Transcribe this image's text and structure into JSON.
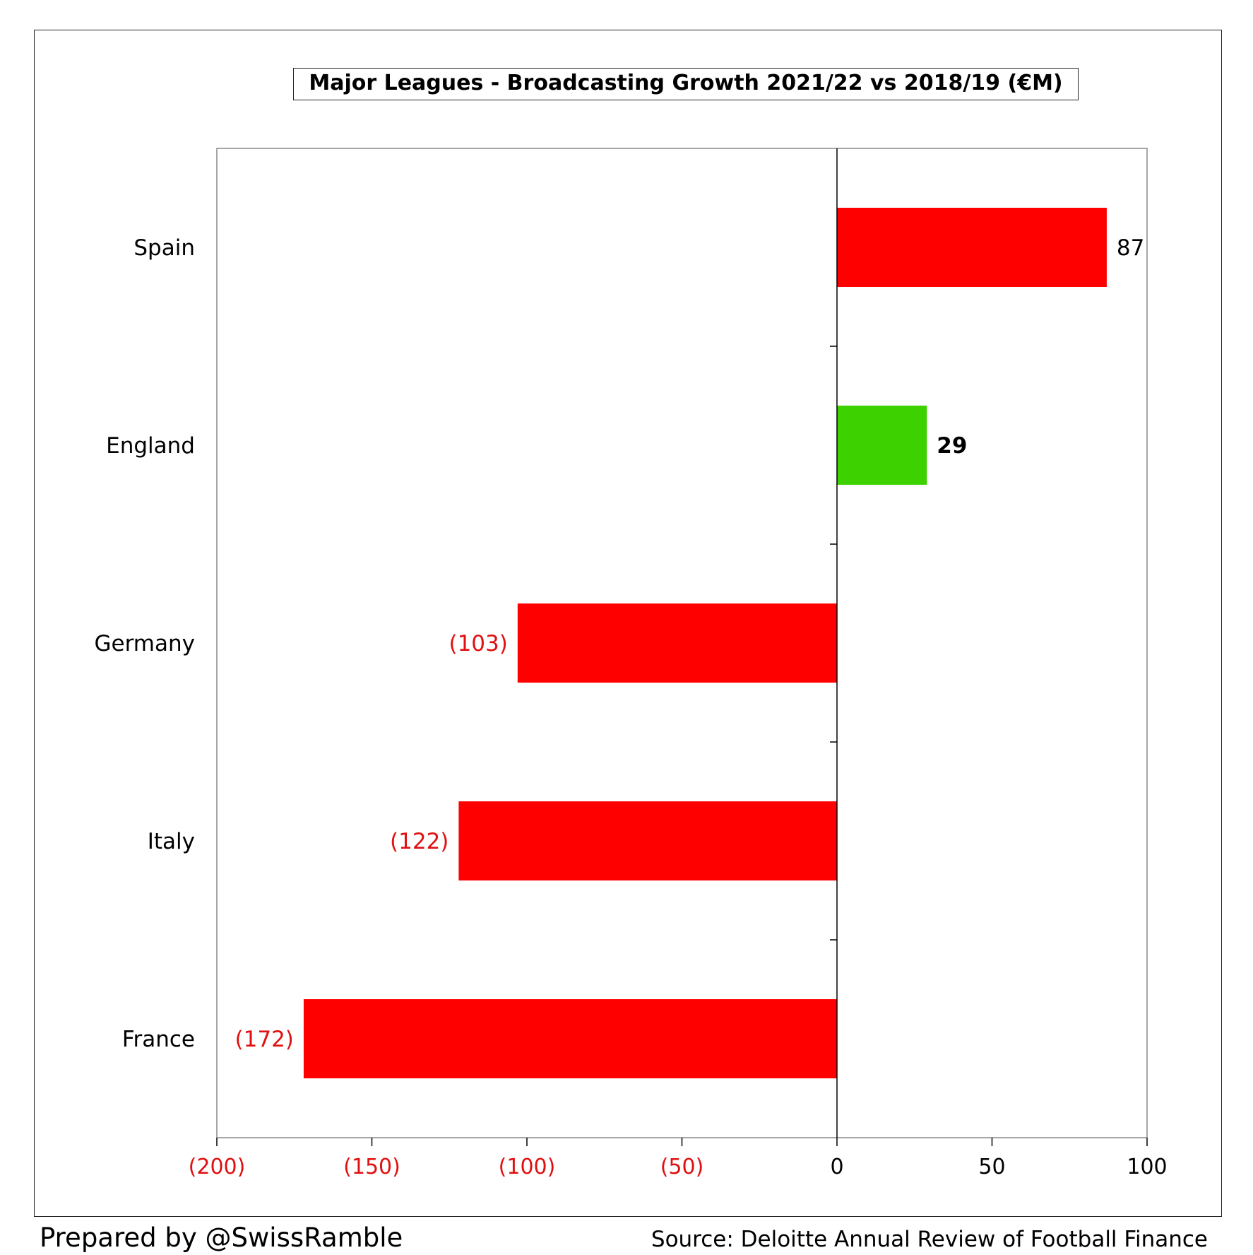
{
  "chart_data": {
    "type": "bar",
    "orientation": "horizontal",
    "title": "Major Leagues - Broadcasting Growth 2021/22 vs 2018/19 (€M)",
    "categories": [
      "Spain",
      "England",
      "Germany",
      "Italy",
      "France"
    ],
    "values": [
      87,
      29,
      -103,
      -122,
      -172
    ],
    "data_labels": [
      "87",
      "29",
      "(103)",
      "(122)",
      "(172)"
    ],
    "bar_colors": [
      "#ff0000",
      "#3dd100",
      "#ff0000",
      "#ff0000",
      "#ff0000"
    ],
    "label_colors": [
      "#000000",
      "#000000",
      "#e01010",
      "#e01010",
      "#e01010"
    ],
    "label_bold": [
      false,
      true,
      false,
      false,
      false
    ],
    "xlim": [
      -200,
      100
    ],
    "xticks": [
      -200,
      -150,
      -100,
      -50,
      0,
      50,
      100
    ],
    "xtick_labels": [
      "(200)",
      "(150)",
      "(100)",
      "(50)",
      "0",
      "50",
      "100"
    ],
    "negative_tick_color": "#e01010",
    "grid": false,
    "legend": "none"
  },
  "footer": {
    "prepared_by": "Prepared by @SwissRamble",
    "source": "Source: Deloitte Annual Review of Football Finance"
  }
}
